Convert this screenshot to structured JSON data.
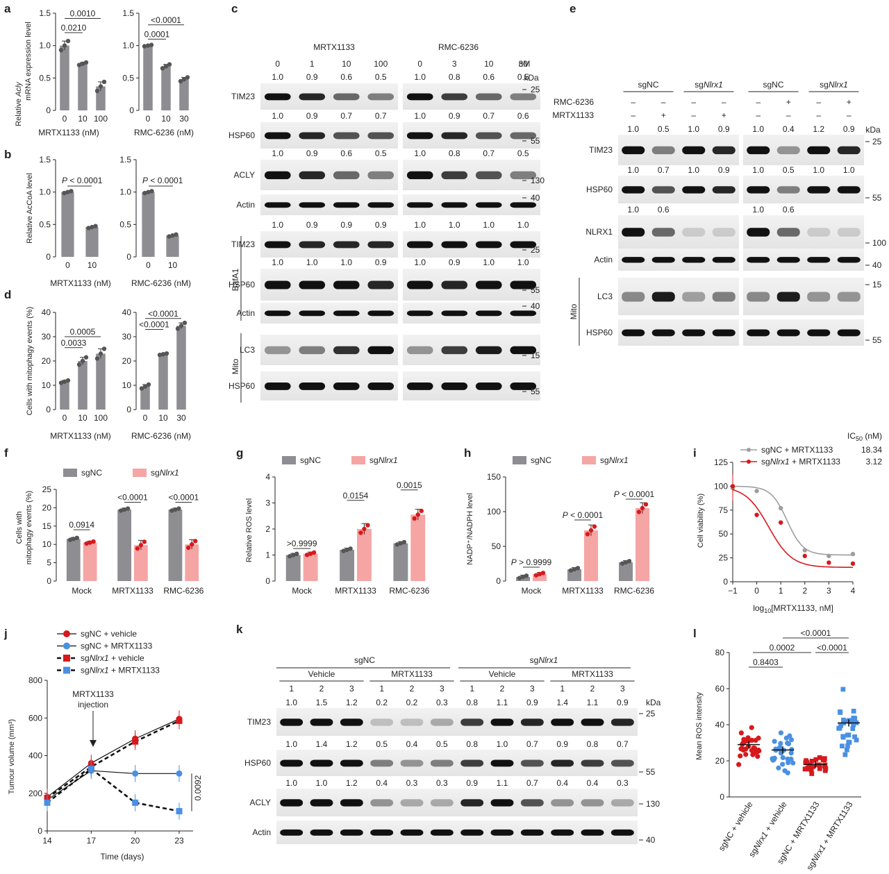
{
  "colors": {
    "gray": "#8d8d92",
    "pink": "#f5a5a3",
    "red": "#d7191c",
    "blue": "#4a90e2",
    "dark_gray": "#555555"
  },
  "panel_labels": [
    "a",
    "b",
    "c",
    "d",
    "e",
    "f",
    "g",
    "h",
    "i",
    "j",
    "k",
    "l"
  ],
  "panel_a": {
    "ylabel_pre": "Relative ",
    "ylabel_it": "Acly",
    "ylabel_l2": "mRNA expression level",
    "left": {
      "xtitle": "MRTX1133 (nM)",
      "ticks": [
        "0",
        "10",
        "100"
      ],
      "values": [
        1.0,
        0.72,
        0.37
      ],
      "errors": [
        0.07,
        0.02,
        0.07
      ],
      "pvals": [
        "0.0010",
        "0.0210"
      ],
      "yticks": [
        "0",
        "0.5",
        "1.0",
        "1.5"
      ],
      "ylim": [
        0,
        1.5
      ]
    },
    "right": {
      "xtitle": "RMC-6236 (nM)",
      "ticks": [
        "0",
        "10",
        "30"
      ],
      "values": [
        1.0,
        0.68,
        0.48
      ],
      "errors": [
        0.01,
        0.03,
        0.03
      ],
      "pvals": [
        "<0.0001",
        "0.0001"
      ],
      "yticks": [
        "0",
        "0.5",
        "1.0",
        "1.5"
      ],
      "ylim": [
        0,
        1.5
      ]
    }
  },
  "panel_b": {
    "ylabel": "Relative AcCoA level",
    "left": {
      "xtitle": "MRTX1133 (nM)",
      "ticks": [
        "0",
        "10"
      ],
      "values": [
        1.0,
        0.46
      ],
      "pval_p": "P",
      "pval": " < 0.0001",
      "yticks": [
        "0",
        "0.5",
        "1.0",
        "1.5"
      ],
      "ylim": [
        0,
        1.5
      ]
    },
    "right": {
      "xtitle": "RMC-6236 (nM)",
      "ticks": [
        "0",
        "10"
      ],
      "values": [
        1.0,
        0.33
      ],
      "pval_p": "P",
      "pval": " < 0.0001",
      "yticks": [
        "0",
        "0.5",
        "1.0",
        "1.5"
      ],
      "ylim": [
        0,
        1.5
      ]
    }
  },
  "panel_c": {
    "group1": "MRTX1133",
    "group2": "RMC-6236",
    "unit": "nM",
    "kda": "kDa",
    "doses1": [
      "0",
      "1",
      "10",
      "100"
    ],
    "doses2": [
      "0",
      "3",
      "10",
      "30"
    ],
    "rows": [
      {
        "label": "TIM23",
        "q1": [
          "1.0",
          "0.9",
          "0.6",
          "0.5"
        ],
        "q2": [
          "1.0",
          "0.8",
          "0.6",
          "0.5"
        ],
        "mw": "25"
      },
      {
        "label": "HSP60",
        "q1": [
          "1.0",
          "0.9",
          "0.7",
          "0.7"
        ],
        "q2": [
          "1.0",
          "0.9",
          "0.7",
          "0.6"
        ],
        "mw": "55"
      },
      {
        "label": "ACLY",
        "q1": [
          "1.0",
          "0.9",
          "0.6",
          "0.5"
        ],
        "q2": [
          "1.0",
          "0.8",
          "0.7",
          "0.5"
        ],
        "mw": "130"
      },
      {
        "label": "Actin",
        "q1": [],
        "q2": [],
        "mw": "40"
      },
      {
        "label": "TIM23",
        "q1": [
          "1.0",
          "0.9",
          "0.9",
          "0.9"
        ],
        "q2": [
          "1.0",
          "1.0",
          "1.0",
          "1.0"
        ],
        "mw": "25"
      },
      {
        "label": "HSP60",
        "q1": [
          "1.0",
          "1.0",
          "1.0",
          "0.9"
        ],
        "q2": [
          "1.0",
          "0.9",
          "1.0",
          "1.0"
        ],
        "mw": "55"
      },
      {
        "label": "Actin",
        "q1": [],
        "q2": [],
        "mw": "40"
      },
      {
        "label": "LC3",
        "q1": [],
        "q2": [],
        "mw": "15"
      },
      {
        "label": "HSP60",
        "q1": [],
        "q2": [],
        "mw": "55"
      }
    ],
    "side1": "BafA1",
    "side2": "Mito"
  },
  "panel_d": {
    "ylabel": "Cells with mitophagy events (%)",
    "left": {
      "xtitle": "MRTX1133 (nM)",
      "ticks": [
        "0",
        "10",
        "100"
      ],
      "values": [
        11.5,
        20,
        23
      ],
      "errors": [
        0.5,
        1.5,
        2
      ],
      "pvals": [
        "0.0005",
        "0.0033"
      ],
      "yticks": [
        "0",
        "10",
        "20",
        "30",
        "40"
      ],
      "ylim": [
        0,
        40
      ]
    },
    "right": {
      "xtitle": "RMC-6236 (nM)",
      "ticks": [
        "0",
        "10",
        "30"
      ],
      "values": [
        9.5,
        22.8,
        34.5
      ],
      "errors": [
        0.8,
        0.3,
        1.2
      ],
      "pvals": [
        "<0.0001",
        "<0.0001"
      ],
      "yticks": [
        "0",
        "10",
        "20",
        "30",
        "40"
      ],
      "ylim": [
        0,
        40
      ]
    }
  },
  "panel_e": {
    "groups": [
      "sgNC",
      "sg",
      "sgNC",
      "sg"
    ],
    "gene_it": "Nlrx1",
    "treat1": "RMC-6236",
    "treat2": "MRTX1133",
    "treat_signs_left": [
      "–",
      "–",
      "–",
      "–"
    ],
    "treat2_signs_left": [
      "–",
      "+",
      "–",
      "+"
    ],
    "treat_signs_right": [
      "–",
      "+",
      "–",
      "+"
    ],
    "treat2_signs_right": [
      "–",
      "–",
      "–",
      "–"
    ],
    "kda": "kDa",
    "rows": [
      {
        "label": "TIM23",
        "q": [
          "1.0",
          "0.5",
          "1.0",
          "0.9",
          "1.0",
          "0.4",
          "1.2",
          "0.9"
        ],
        "mw": "25"
      },
      {
        "label": "HSP60",
        "q": [
          "1.0",
          "0.7",
          "1.0",
          "0.9",
          "1.0",
          "0.5",
          "1.0",
          "1.0"
        ],
        "mw": "55"
      },
      {
        "label": "NLRX1",
        "q": [
          "1.0",
          "0.6",
          "",
          "",
          "1.0",
          "0.6",
          "",
          ""
        ],
        "mw": "100"
      },
      {
        "label": "Actin",
        "q": [],
        "mw": "40"
      },
      {
        "label": "LC3",
        "q": [],
        "mw": "15"
      },
      {
        "label": "HSP60",
        "q": [],
        "mw": "55"
      }
    ],
    "side": "Mito"
  },
  "panel_f": {
    "legend": [
      "sgNC",
      "sg"
    ],
    "gene_it": "Nlrx1",
    "ylabel1": "Cells with",
    "ylabel2": "mitophagy events (%)",
    "categories": [
      "Mock",
      "MRTX1133",
      "RMC-6236"
    ],
    "series": [
      {
        "name": "sgNC",
        "values": [
          11.5,
          19.5,
          19.5
        ]
      },
      {
        "name": "sgNlrx1",
        "values": [
          10.5,
          9.8,
          10
        ]
      }
    ],
    "pvals": [
      "0.0914",
      "<0.0001",
      "<0.0001"
    ],
    "yticks": [
      "0",
      "5",
      "10",
      "15",
      "20",
      "25"
    ],
    "ylim": [
      0,
      25
    ]
  },
  "panel_g": {
    "legend": [
      "sgNC",
      "sg"
    ],
    "gene_it": "Nlrx1",
    "ylabel": "Relative ROS level",
    "categories": [
      "Mock",
      "MRTX1133",
      "RMC-6236"
    ],
    "series": [
      {
        "name": "sgNC",
        "values": [
          1.0,
          1.2,
          1.45
        ]
      },
      {
        "name": "sgNlrx1",
        "values": [
          1.05,
          2.0,
          2.55
        ]
      }
    ],
    "pvals": [
      ">0.9999",
      "0.0154",
      "0.0015"
    ],
    "yticks": [
      "0",
      "1",
      "2",
      "3",
      "4"
    ],
    "ylim": [
      0,
      4
    ]
  },
  "panel_h": {
    "legend": [
      "sgNC",
      "sg"
    ],
    "gene_it": "Nlrx1",
    "ylabel": "NADP⁺/NADPH level",
    "categories": [
      "Mock",
      "MRTX1133",
      "RMC-6236"
    ],
    "series": [
      {
        "name": "sgNC",
        "values": [
          6,
          17,
          27
        ]
      },
      {
        "name": "sgNlrx1",
        "values": [
          10,
          73,
          105
        ]
      }
    ],
    "pvals": [
      " > 0.9999",
      " < 0.0001",
      " < 0.0001"
    ],
    "pval_p": "P",
    "yticks": [
      "0",
      "50",
      "100",
      "150"
    ],
    "ylim": [
      0,
      150
    ]
  },
  "panel_i": {
    "ic50_title": "IC",
    "ic50_sub": "50",
    "ic50_unit": " (nM)",
    "legend": [
      {
        "name": "sgNC + MRTX1133",
        "ic50": "18.34"
      },
      {
        "pre": "sg",
        "it": "Nlrx1",
        "post": " + MRTX1133",
        "ic50": "3.12"
      }
    ],
    "ylabel": "Cell viability (%)",
    "xlabel_pre": "log",
    "xlabel_sub": "10",
    "xlabel_post": "[MRTX1133, nM]",
    "xticks": [
      "−1",
      "0",
      "1",
      "2",
      "3",
      "4"
    ],
    "yticks": [
      "0",
      "25",
      "50",
      "75",
      "100",
      "125"
    ],
    "chart_data": {
      "type": "scatter",
      "x": [
        -1,
        0,
        1,
        2,
        3,
        4
      ],
      "series": [
        {
          "name": "sgNC + MRTX1133",
          "values": [
            98,
            95,
            77,
            33,
            27,
            29
          ]
        },
        {
          "name": "sgNlrx1 + MRTX1133",
          "values": [
            100,
            70,
            62,
            27,
            20,
            19
          ]
        }
      ],
      "xlim": [
        -1,
        4
      ],
      "ylim": [
        0,
        125
      ]
    }
  },
  "panel_j": {
    "legend": [
      "sgNC + vehicle",
      "sgNC + MRTX1133",
      "vehicle",
      "MRTX1133"
    ],
    "gene_it": "Nlrx1",
    "annot1": "MRTX1133",
    "annot2": "injection",
    "ylabel": "Tumour volume (mm³)",
    "xlabel": "Time (days)",
    "xticks": [
      "14",
      "17",
      "20",
      "23"
    ],
    "yticks": [
      "0",
      "200",
      "400",
      "600",
      "800"
    ],
    "pval": "0.0092",
    "series": [
      {
        "name": "sgNC + vehicle",
        "values": [
          180,
          360,
          490,
          595
        ]
      },
      {
        "name": "sgNC + MRTX1133",
        "values": [
          165,
          320,
          305,
          305
        ]
      },
      {
        "name": "sgNlrx1 + vehicle",
        "values": [
          175,
          340,
          475,
          585
        ]
      },
      {
        "name": "sgNlrx1 + MRTX1133",
        "values": [
          150,
          330,
          150,
          105
        ]
      }
    ]
  },
  "panel_k": {
    "groups": [
      "sgNC",
      "sg"
    ],
    "gene_it": "Nlrx1",
    "sub": [
      "Vehicle",
      "MRTX1133",
      "Vehicle",
      "MRTX1133"
    ],
    "lanes": [
      "1",
      "2",
      "3",
      "1",
      "2",
      "3",
      "1",
      "2",
      "3",
      "1",
      "2",
      "3"
    ],
    "kda": "kDa",
    "rows": [
      {
        "label": "TIM23",
        "q": [
          "1.0",
          "1.5",
          "1.2",
          "0.2",
          "0.2",
          "0.3",
          "0.8",
          "1.1",
          "0.9",
          "1.4",
          "1.1",
          "0.9"
        ],
        "mw": "25"
      },
      {
        "label": "HSP60",
        "q": [
          "1.0",
          "1.4",
          "1.2",
          "0.5",
          "0.4",
          "0.5",
          "0.8",
          "1.0",
          "0.7",
          "0.9",
          "0.8",
          "0.7"
        ],
        "mw": "55"
      },
      {
        "label": "ACLY",
        "q": [
          "1.0",
          "1.0",
          "1.2",
          "0.4",
          "0.3",
          "0.3",
          "0.9",
          "1.1",
          "0.7",
          "0.4",
          "0.4",
          "0.3"
        ],
        "mw": "130"
      },
      {
        "label": "Actin",
        "q": [],
        "mw": "40"
      }
    ]
  },
  "panel_l": {
    "ylabel": "Mean ROS intensity",
    "categories": [
      "sgNC + vehicle",
      "vehicle",
      "sgNC + MRTX1133",
      "MRTX1133"
    ],
    "gene_it": "Nlrx1",
    "means": [
      29,
      26,
      18,
      41
    ],
    "yticks": [
      "0",
      "20",
      "40",
      "60",
      "80"
    ],
    "ylim": [
      0,
      80
    ],
    "pvals": [
      "<0.0001",
      "0.0002",
      "<0.0001",
      "0.8403"
    ]
  }
}
